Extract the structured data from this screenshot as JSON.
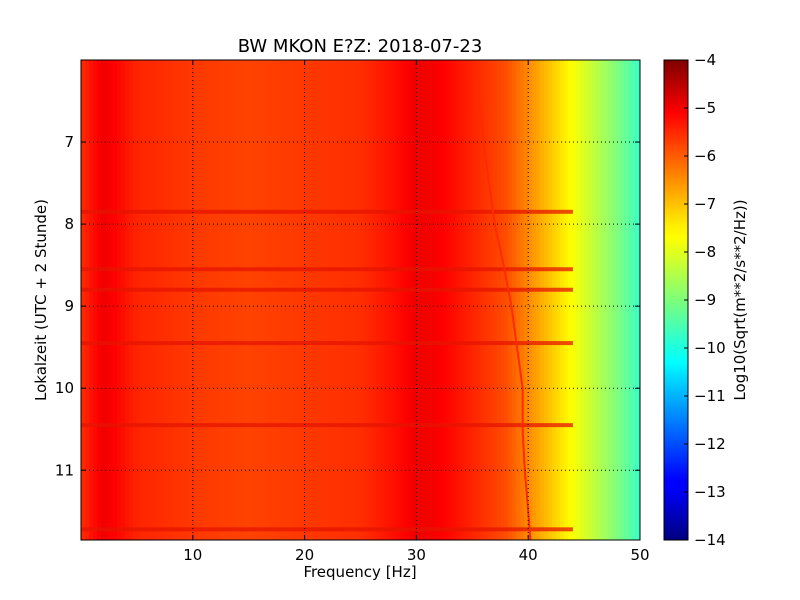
{
  "chart_data": {
    "type": "heatmap",
    "title": "BW MKON E?Z: 2018-07-23",
    "xlabel": "Frequency [Hz]",
    "ylabel": "Lokalzeit (UTC + 2 Stunde)",
    "xlim": [
      0,
      50
    ],
    "ylim": [
      11.85,
      6.0
    ],
    "y_inverted": true,
    "xticks": [
      10,
      20,
      30,
      40,
      50
    ],
    "yticks": [
      7,
      8,
      9,
      10,
      11
    ],
    "grid": true,
    "colormap": "jet",
    "colorbar": {
      "label": "Log10(Sqrt(m**2/s**2/Hz))",
      "range": [
        -14,
        -4
      ],
      "ticks": [
        -4,
        -5,
        -6,
        -7,
        -8,
        -9,
        -10,
        -11,
        -12,
        -13,
        -14
      ]
    },
    "spectral_profile": {
      "frequency_hz": [
        0,
        2,
        5,
        10,
        15,
        20,
        25,
        28,
        30,
        32,
        35,
        38,
        40,
        42,
        44,
        46,
        48,
        50
      ],
      "level": [
        -5.7,
        -5.1,
        -5.6,
        -5.8,
        -5.9,
        -5.8,
        -5.7,
        -5.4,
        -5.1,
        -5.2,
        -5.6,
        -6.0,
        -6.6,
        -7.2,
        -7.8,
        -8.4,
        -9.0,
        -9.7
      ]
    },
    "horizontal_bands_hour": [
      7.85,
      8.55,
      8.8,
      9.45,
      10.45,
      11.72
    ],
    "drifting_line": {
      "hour": [
        6.3,
        7.0,
        7.5,
        8.0,
        8.5,
        9.0,
        9.5,
        10.0,
        10.5,
        11.0,
        11.5,
        11.85
      ],
      "frequency_hz": [
        35.5,
        36.0,
        36.5,
        37.0,
        37.8,
        38.5,
        39.0,
        39.5,
        39.5,
        39.7,
        40.0,
        40.2
      ]
    }
  }
}
